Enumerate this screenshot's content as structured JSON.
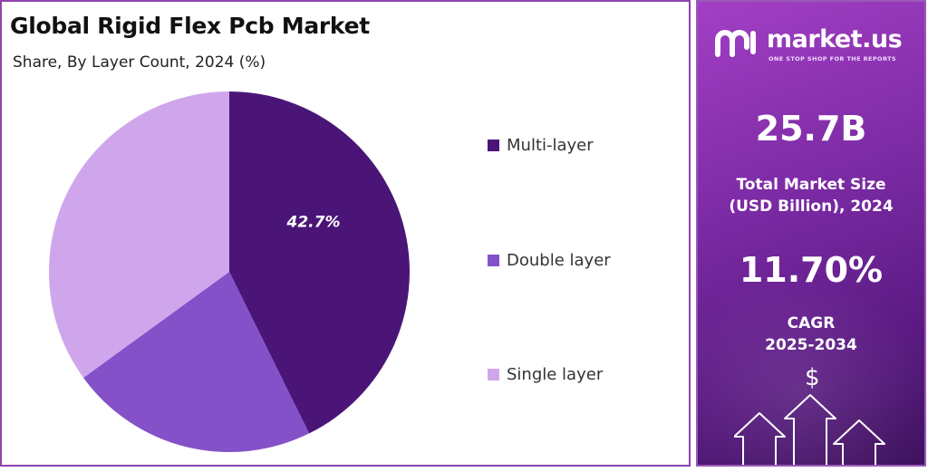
{
  "header": {
    "title": "Global Rigid Flex Pcb Market",
    "subtitle": "Share, By Layer Count, 2024 (%)"
  },
  "chart_data": {
    "type": "pie",
    "title": "Global Rigid Flex Pcb Market",
    "subtitle": "Share, By Layer Count, 2024 (%)",
    "categories": [
      "Multi-layer",
      "Double layer",
      "Single layer"
    ],
    "values": [
      42.7,
      22.3,
      35.0
    ],
    "labels": [
      "42.7%",
      "",
      ""
    ],
    "colors": [
      "#4a1577",
      "#8451c9",
      "#cfa6ec"
    ],
    "legend_position": "right"
  },
  "legend": {
    "items": [
      {
        "label": "Multi-layer",
        "color": "#4a1577"
      },
      {
        "label": "Double layer",
        "color": "#8451c9"
      },
      {
        "label": "Single layer",
        "color": "#cfa6ec"
      }
    ]
  },
  "sidebar": {
    "brand": "market.us",
    "tagline": "ONE STOP SHOP FOR THE REPORTS",
    "market_size_value": "25.7B",
    "market_size_label_line1": "Total Market Size",
    "market_size_label_line2": "(USD Billion), 2024",
    "cagr_value": "11.70%",
    "cagr_label_line1": "CAGR",
    "cagr_label_line2": "2025-2034",
    "currency_symbol": "$",
    "icons": [
      "logo-icon",
      "dollar-icon",
      "growth-arrows-icon"
    ]
  }
}
